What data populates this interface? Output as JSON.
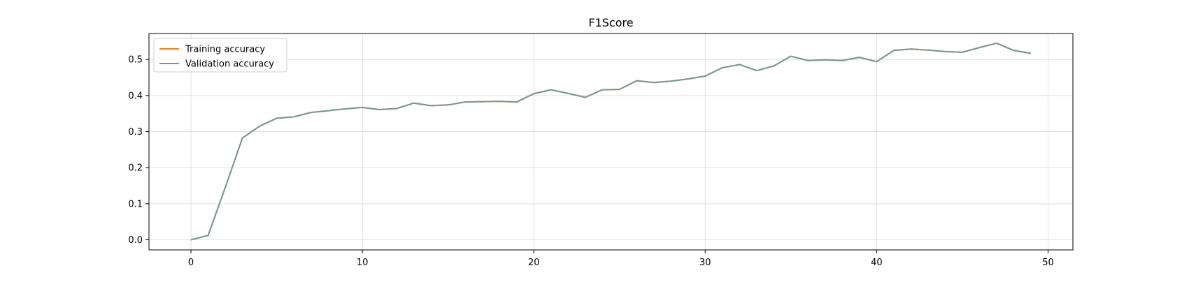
{
  "chart_data": {
    "type": "line",
    "title": "F1Score",
    "xlabel": "",
    "ylabel": "",
    "xlim": [
      -2.45,
      51.45
    ],
    "ylim": [
      -0.028,
      0.572
    ],
    "xticks": [
      0,
      10,
      20,
      30,
      40,
      50
    ],
    "xtick_labels": [
      "0",
      "10",
      "20",
      "30",
      "40",
      "50"
    ],
    "yticks": [
      0.0,
      0.1,
      0.2,
      0.3,
      0.4,
      0.5
    ],
    "ytick_labels": [
      "0.0",
      "0.1",
      "0.2",
      "0.3",
      "0.4",
      "0.5"
    ],
    "grid": true,
    "legend_position": "upper-left",
    "x": [
      0,
      1,
      2,
      3,
      4,
      5,
      6,
      7,
      8,
      9,
      10,
      11,
      12,
      13,
      14,
      15,
      16,
      17,
      18,
      19,
      20,
      21,
      22,
      23,
      24,
      25,
      26,
      27,
      28,
      29,
      30,
      31,
      32,
      33,
      34,
      35,
      36,
      37,
      38,
      39,
      40,
      41,
      42,
      43,
      44,
      45,
      46,
      47,
      48,
      49
    ],
    "series": [
      {
        "name": "Training accuracy",
        "color": "#ff7f0e",
        "values": [
          0.0,
          0.012,
          0.145,
          0.282,
          0.315,
          0.337,
          0.341,
          0.353,
          0.358,
          0.363,
          0.367,
          0.361,
          0.364,
          0.379,
          0.372,
          0.374,
          0.382,
          0.383,
          0.384,
          0.382,
          0.405,
          0.416,
          0.406,
          0.395,
          0.416,
          0.417,
          0.441,
          0.436,
          0.44,
          0.446,
          0.454,
          0.477,
          0.486,
          0.469,
          0.482,
          0.509,
          0.497,
          0.499,
          0.497,
          0.506,
          0.494,
          0.525,
          0.529,
          0.526,
          0.522,
          0.52,
          0.533,
          0.545,
          0.525,
          0.517
        ]
      },
      {
        "name": "Validation accuracy",
        "color": "#5f9ea0",
        "values": [
          0.0,
          0.012,
          0.145,
          0.282,
          0.315,
          0.337,
          0.341,
          0.353,
          0.358,
          0.363,
          0.367,
          0.361,
          0.364,
          0.379,
          0.372,
          0.374,
          0.382,
          0.383,
          0.384,
          0.382,
          0.405,
          0.416,
          0.406,
          0.395,
          0.416,
          0.417,
          0.441,
          0.436,
          0.44,
          0.446,
          0.454,
          0.477,
          0.486,
          0.469,
          0.482,
          0.509,
          0.497,
          0.499,
          0.497,
          0.506,
          0.494,
          0.525,
          0.529,
          0.526,
          0.522,
          0.52,
          0.533,
          0.545,
          0.525,
          0.517
        ]
      }
    ]
  }
}
